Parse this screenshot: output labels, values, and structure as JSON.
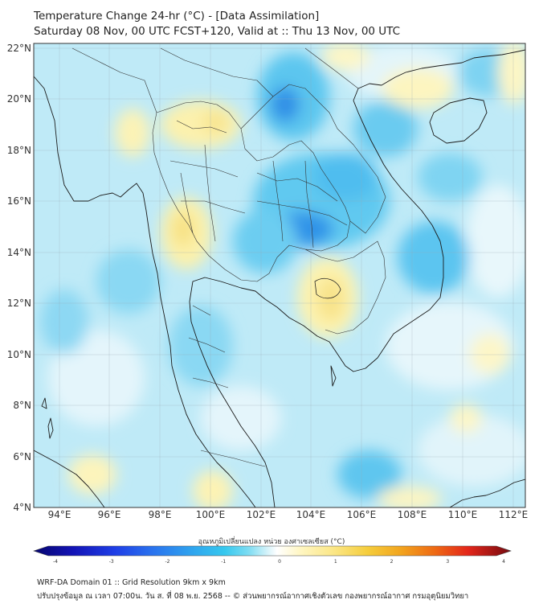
{
  "header": {
    "title_line1": "Temperature Change 24-hr (°C) - [Data Assimilation]",
    "title_line2": "Saturday 08 Nov, 00 UTC FCST+120, Valid at :: Thu 13 Nov, 00 UTC"
  },
  "map": {
    "lon_ticks": [
      "94°E",
      "96°E",
      "98°E",
      "100°E",
      "102°E",
      "104°E",
      "106°E",
      "108°E",
      "110°E",
      "112°E"
    ],
    "lat_ticks": [
      "22°N",
      "20°N",
      "18°N",
      "16°N",
      "14°N",
      "12°N",
      "10°N",
      "8°N",
      "6°N",
      "4°N"
    ],
    "extent": {
      "lon_min": 93,
      "lon_max": 112.5,
      "lat_min": 4,
      "lat_max": 22.2
    }
  },
  "colorbar": {
    "label": "อุณหภูมิเปลี่ยนแปลง หน่วย องศาเซลเซียส (°C)",
    "ticks": [
      "-4",
      "-3",
      "-2",
      "-1",
      "0",
      "1",
      "2",
      "3",
      "4"
    ],
    "min": -4,
    "max": 4,
    "colors": [
      "#06066e",
      "#1212b4",
      "#1f3ee6",
      "#2a73ee",
      "#2fa3ee",
      "#36c8ee",
      "#7ddcf2",
      "#c4eef8",
      "#ffffff",
      "#fff6c2",
      "#fbe685",
      "#f5cd3c",
      "#f2a41e",
      "#ee6a14",
      "#e3261a",
      "#b40f13",
      "#750a10"
    ]
  },
  "footer": {
    "line1": "WRF-DA Domain 01 :: Grid Resolution 9km x 9km",
    "line2": "ปรับปรุงข้อมูล ณ เวลา 07:00น. วัน ส. ที่ 08 พ.ย. 2568 -- © ส่วนพยากรณ์อากาศเชิงตัวเลข กองพยากรณ์อากาศ กรมอุตุนิยมวิทยา"
  }
}
